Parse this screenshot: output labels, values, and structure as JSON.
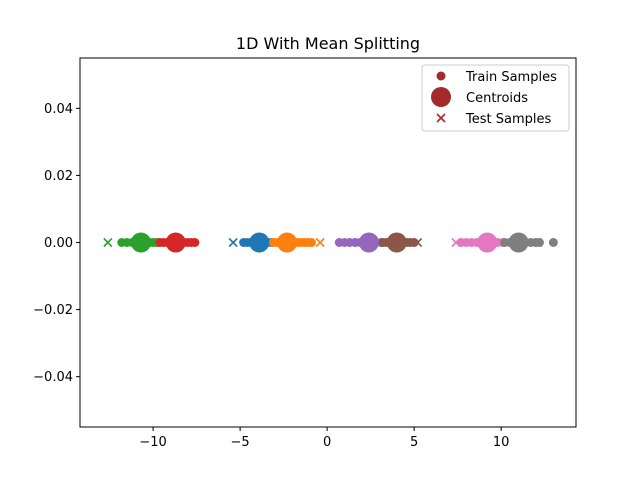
{
  "chart_data": {
    "type": "scatter",
    "title": "1D With Mean Splitting",
    "xlabel": "",
    "ylabel": "",
    "xlim": [
      -14.2,
      14.3
    ],
    "ylim": [
      -0.055,
      0.055
    ],
    "x_ticks": [
      -10,
      -5,
      0,
      5,
      10
    ],
    "x_tick_labels": [
      "−10",
      "−5",
      "0",
      "5",
      "10"
    ],
    "y_ticks": [
      -0.04,
      -0.02,
      0.0,
      0.02,
      0.04
    ],
    "y_tick_labels": [
      "−0.04",
      "−0.02",
      "0.00",
      "0.02",
      "0.04"
    ],
    "grid": false,
    "legend": {
      "placement": "top-right",
      "entries": [
        {
          "label": "Train Samples",
          "marker": "circle",
          "color": "#a52a2a"
        },
        {
          "label": "Centroids",
          "marker": "big-circle",
          "color": "#a52a2a"
        },
        {
          "label": "Test Samples",
          "marker": "x",
          "color": "#a52a2a"
        }
      ]
    },
    "clusters": [
      {
        "color": "#2ca02c",
        "centroid": -10.7,
        "train": [
          -11.8,
          -11.5,
          -11.2,
          -11.0,
          -10.9,
          -10.6,
          -10.4,
          -10.2,
          -10.0,
          -9.8,
          -9.7
        ],
        "test": [
          -12.6
        ]
      },
      {
        "color": "#d62728",
        "centroid": -8.7,
        "train": [
          -9.6,
          -9.4,
          -9.2,
          -9.0,
          -8.9,
          -8.6,
          -8.4,
          -8.2,
          -8.0,
          -7.8,
          -7.6
        ],
        "test": []
      },
      {
        "color": "#1f77b4",
        "centroid": -3.9,
        "train": [
          -4.8,
          -4.6,
          -4.4,
          -4.2,
          -4.0,
          -3.8,
          -3.6,
          -3.4,
          -3.2
        ],
        "test": [
          -5.4
        ]
      },
      {
        "color": "#ff7f0e",
        "centroid": -2.3,
        "train": [
          -3.1,
          -2.9,
          -2.7,
          -2.5,
          -2.3,
          -2.1,
          -1.9,
          -1.7,
          -1.5,
          -1.3,
          -1.1,
          -0.9
        ],
        "test": [
          -0.4
        ]
      },
      {
        "color": "#9467bd",
        "centroid": 2.4,
        "train": [
          0.7,
          1.0,
          1.3,
          1.6,
          1.9,
          2.2,
          2.5,
          2.8,
          3.1
        ],
        "test": [
          1.5
        ]
      },
      {
        "color": "#8c564b",
        "centroid": 4.0,
        "train": [
          3.2,
          3.4,
          3.6,
          3.8,
          4.0,
          4.2,
          4.4,
          4.6,
          4.8,
          5.0
        ],
        "test": [
          5.2
        ]
      },
      {
        "color": "#e377c2",
        "centroid": 9.2,
        "train": [
          7.7,
          8.0,
          8.3,
          8.6,
          8.9,
          9.2,
          9.5,
          9.8,
          10.1
        ],
        "test": [
          7.4
        ]
      },
      {
        "color": "#7f7f7f",
        "centroid": 11.0,
        "train": [
          10.2,
          10.5,
          10.8,
          11.1,
          11.4,
          11.7,
          12.0,
          12.2,
          13.0
        ],
        "test": [
          12.1
        ]
      }
    ]
  }
}
